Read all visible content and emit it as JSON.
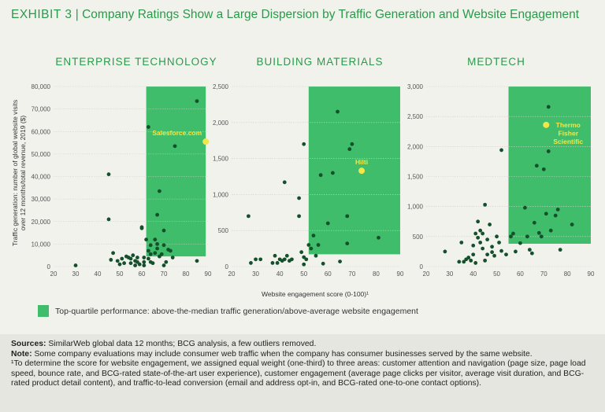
{
  "header": {
    "exhibit": "Exhibit 3",
    "separator": "|",
    "title": "Company Ratings Show a Large Dispersion by Traffic Generation and Website Engagement"
  },
  "y_axis_label_line1": "Traffic generation: number of global website visits",
  "y_axis_label_line2": "over 12 months/total revenue, 2019 ($)",
  "x_axis_label": "Website engagement score (0-100)¹",
  "legend": {
    "label": "Top-quartile performance: above-the-median traffic generation/above-average website engagement"
  },
  "sources": {
    "label": "Sources:",
    "text": "SimilarWeb global data 12 months; BCG analysis, a few outliers removed."
  },
  "note": {
    "label": "Note:",
    "text": "Some company evaluations may include consumer web traffic when the company has consumer businesses served by the same website.",
    "footnote": "¹To determine the score for website engagement, we assigned equal weight (one-third) to three areas: customer attention and navigation (page size, page load speed, bounce rate, and BCG-rated state-of-the-art user experience), customer engagement (average page clicks per visitor, average visit duration, and BCG-rated product detail content), and traffic-to-lead conversion (email and address opt-in, and BCG-rated one-to-one contact options)."
  },
  "colors": {
    "highlight": "#3fbd6a",
    "dot": "#14502c",
    "callout": "#f0e84a",
    "accent": "#2a9a4a"
  },
  "chart_data": [
    {
      "type": "scatter",
      "title": "ENTERPRISE TECHNOLOGY",
      "xlim": [
        20,
        90
      ],
      "ylim": [
        0,
        80000
      ],
      "xticks": [
        20,
        30,
        40,
        50,
        60,
        70,
        80,
        90
      ],
      "yticks": [
        0,
        10000,
        20000,
        30000,
        40000,
        50000,
        60000,
        70000,
        80000
      ],
      "ytick_labels": [
        "0",
        "10,000",
        "20,000",
        "30,000",
        "40,000",
        "50,000",
        "60,000",
        "70,000",
        "80,000"
      ],
      "highlight_region": {
        "x": [
          62,
          89
        ],
        "y": [
          4500,
          80000
        ]
      },
      "points": [
        [
          30,
          500
        ],
        [
          45,
          41000
        ],
        [
          45,
          21000
        ],
        [
          46,
          3000
        ],
        [
          47,
          6000
        ],
        [
          49,
          2500
        ],
        [
          50,
          1000
        ],
        [
          51,
          3500
        ],
        [
          52,
          1500
        ],
        [
          53,
          4500
        ],
        [
          54,
          4000
        ],
        [
          55,
          3500
        ],
        [
          55,
          1500
        ],
        [
          56,
          5000
        ],
        [
          57,
          2500
        ],
        [
          57,
          500
        ],
        [
          58,
          4000
        ],
        [
          58,
          2000
        ],
        [
          59,
          1000
        ],
        [
          60,
          17000
        ],
        [
          60,
          17500
        ],
        [
          61,
          4000
        ],
        [
          61,
          2000
        ],
        [
          61,
          500
        ],
        [
          62,
          12000
        ],
        [
          63,
          62000
        ],
        [
          63,
          7000
        ],
        [
          63,
          3500
        ],
        [
          64,
          9500
        ],
        [
          64,
          5500
        ],
        [
          64,
          2000
        ],
        [
          65,
          1500
        ],
        [
          66,
          12000
        ],
        [
          66,
          6000
        ],
        [
          67,
          23000
        ],
        [
          67,
          10000
        ],
        [
          67,
          8000
        ],
        [
          68,
          33500
        ],
        [
          68,
          4500
        ],
        [
          69,
          5500
        ],
        [
          70,
          16000
        ],
        [
          70,
          9500
        ],
        [
          70,
          500
        ],
        [
          71,
          2000
        ],
        [
          72,
          7500
        ],
        [
          73,
          7000
        ],
        [
          74,
          4000
        ],
        [
          75,
          53500
        ],
        [
          85,
          73500
        ],
        [
          85,
          2500
        ]
      ],
      "callouts": [
        {
          "label": "Salesforce.com",
          "x": 89,
          "y": 55500
        }
      ]
    },
    {
      "type": "scatter",
      "title": "BUILDING MATERIALS",
      "xlim": [
        20,
        90
      ],
      "ylim": [
        0,
        2500
      ],
      "xticks": [
        20,
        30,
        40,
        50,
        60,
        70,
        80,
        90
      ],
      "yticks": [
        0,
        500,
        1000,
        1500,
        2000,
        2500
      ],
      "ytick_labels": [
        "0",
        "500",
        "1,000",
        "1,500",
        "2,000",
        "2,500"
      ],
      "highlight_region": {
        "x": [
          52,
          90
        ],
        "y": [
          170,
          2500
        ]
      },
      "points": [
        [
          27,
          700
        ],
        [
          28,
          50
        ],
        [
          30,
          100
        ],
        [
          32,
          100
        ],
        [
          37,
          50
        ],
        [
          38,
          150
        ],
        [
          39,
          50
        ],
        [
          40,
          100
        ],
        [
          41,
          80
        ],
        [
          42,
          1170
        ],
        [
          42,
          100
        ],
        [
          43,
          150
        ],
        [
          44,
          80
        ],
        [
          45,
          100
        ],
        [
          48,
          700
        ],
        [
          48,
          950
        ],
        [
          49,
          200
        ],
        [
          50,
          130
        ],
        [
          50,
          30
        ],
        [
          50,
          1700
        ],
        [
          51,
          100
        ],
        [
          52,
          300
        ],
        [
          53,
          250
        ],
        [
          54,
          430
        ],
        [
          55,
          150
        ],
        [
          56,
          300
        ],
        [
          57,
          1270
        ],
        [
          58,
          40
        ],
        [
          60,
          600
        ],
        [
          62,
          1300
        ],
        [
          64,
          2150
        ],
        [
          65,
          70
        ],
        [
          68,
          320
        ],
        [
          68,
          700
        ],
        [
          69,
          1630
        ],
        [
          70,
          1700
        ],
        [
          81,
          400
        ]
      ],
      "callouts": [
        {
          "label": "Hilti",
          "x": 74,
          "y": 1330
        }
      ]
    },
    {
      "type": "scatter",
      "title": "MEDTECH",
      "xlim": [
        20,
        90
      ],
      "ylim": [
        0,
        3000
      ],
      "xticks": [
        20,
        30,
        40,
        50,
        60,
        70,
        80,
        90
      ],
      "yticks": [
        0,
        500,
        1000,
        1500,
        2000,
        2500,
        3000
      ],
      "ytick_labels": [
        "0",
        "500",
        "1,000",
        "1,500",
        "2,000",
        "2,500",
        "3,000"
      ],
      "highlight_region": {
        "x": [
          55,
          90
        ],
        "y": [
          380,
          3000
        ]
      },
      "points": [
        [
          28,
          250
        ],
        [
          34,
          80
        ],
        [
          35,
          400
        ],
        [
          36,
          80
        ],
        [
          37,
          120
        ],
        [
          38,
          150
        ],
        [
          39,
          100
        ],
        [
          40,
          200
        ],
        [
          40,
          350
        ],
        [
          41,
          550
        ],
        [
          41,
          60
        ],
        [
          42,
          480
        ],
        [
          42,
          750
        ],
        [
          43,
          600
        ],
        [
          43,
          400
        ],
        [
          44,
          550
        ],
        [
          44,
          300
        ],
        [
          45,
          1030
        ],
        [
          45,
          100
        ],
        [
          46,
          450
        ],
        [
          46,
          200
        ],
        [
          47,
          700
        ],
        [
          48,
          240
        ],
        [
          48,
          330
        ],
        [
          49,
          180
        ],
        [
          50,
          500
        ],
        [
          51,
          400
        ],
        [
          52,
          1940
        ],
        [
          52,
          260
        ],
        [
          54,
          200
        ],
        [
          56,
          500
        ],
        [
          57,
          550
        ],
        [
          58,
          250
        ],
        [
          60,
          390
        ],
        [
          62,
          980
        ],
        [
          63,
          500
        ],
        [
          64,
          280
        ],
        [
          65,
          220
        ],
        [
          66,
          730
        ],
        [
          67,
          1680
        ],
        [
          68,
          560
        ],
        [
          69,
          500
        ],
        [
          70,
          1620
        ],
        [
          71,
          880
        ],
        [
          72,
          2660
        ],
        [
          72,
          1920
        ],
        [
          73,
          600
        ],
        [
          75,
          850
        ],
        [
          76,
          950
        ],
        [
          77,
          280
        ],
        [
          82,
          700
        ]
      ],
      "callouts": [
        {
          "label": "Thermo Fisher Scientific",
          "label_lines": [
            "Thermo",
            "Fisher",
            "Scientific"
          ],
          "x": 71,
          "y": 2360
        }
      ]
    }
  ]
}
